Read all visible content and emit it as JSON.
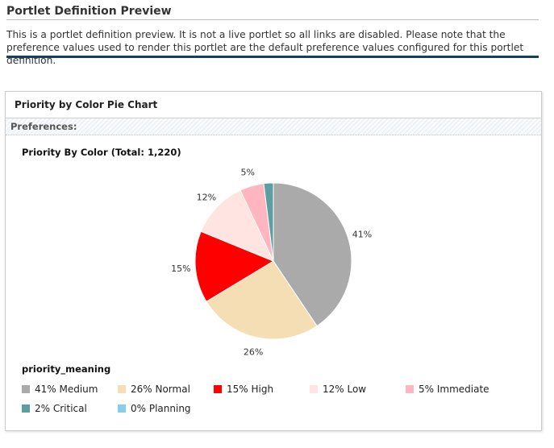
{
  "page": {
    "title": "Portlet Definition Preview",
    "intro": "This is a portlet definition preview. It is not a live portlet so all links are disabled. Please note that the preference values used to render this portlet are the default preference values configured for this portlet definition."
  },
  "portlet": {
    "header": "Priority by Color Pie Chart",
    "preferences_label": "Preferences:"
  },
  "chart_data": {
    "type": "pie",
    "title": "Priority By Color",
    "total_label": "(Total: 1,220)",
    "legend_title": "priority_meaning",
    "slices": [
      {
        "name": "Medium",
        "percent": 41,
        "label": "41%",
        "legend": "41% Medium",
        "color": "#aaaaaa"
      },
      {
        "name": "Normal",
        "percent": 26,
        "label": "26%",
        "legend": "26% Normal",
        "color": "#f5deb3"
      },
      {
        "name": "High",
        "percent": 15,
        "label": "15%",
        "legend": "15% High",
        "color": "#ff0000"
      },
      {
        "name": "Low",
        "percent": 12,
        "label": "12%",
        "legend": "12% Low",
        "color": "#ffe4e1"
      },
      {
        "name": "Immediate",
        "percent": 5,
        "label": "5%",
        "legend": "5% Immediate",
        "color": "#ffb6c1"
      },
      {
        "name": "Critical",
        "percent": 2,
        "label": "",
        "legend": "2% Critical",
        "color": "#5f9ea0"
      },
      {
        "name": "Planning",
        "percent": 0,
        "label": "",
        "legend": "0% Planning",
        "color": "#87ceeb"
      }
    ]
  }
}
